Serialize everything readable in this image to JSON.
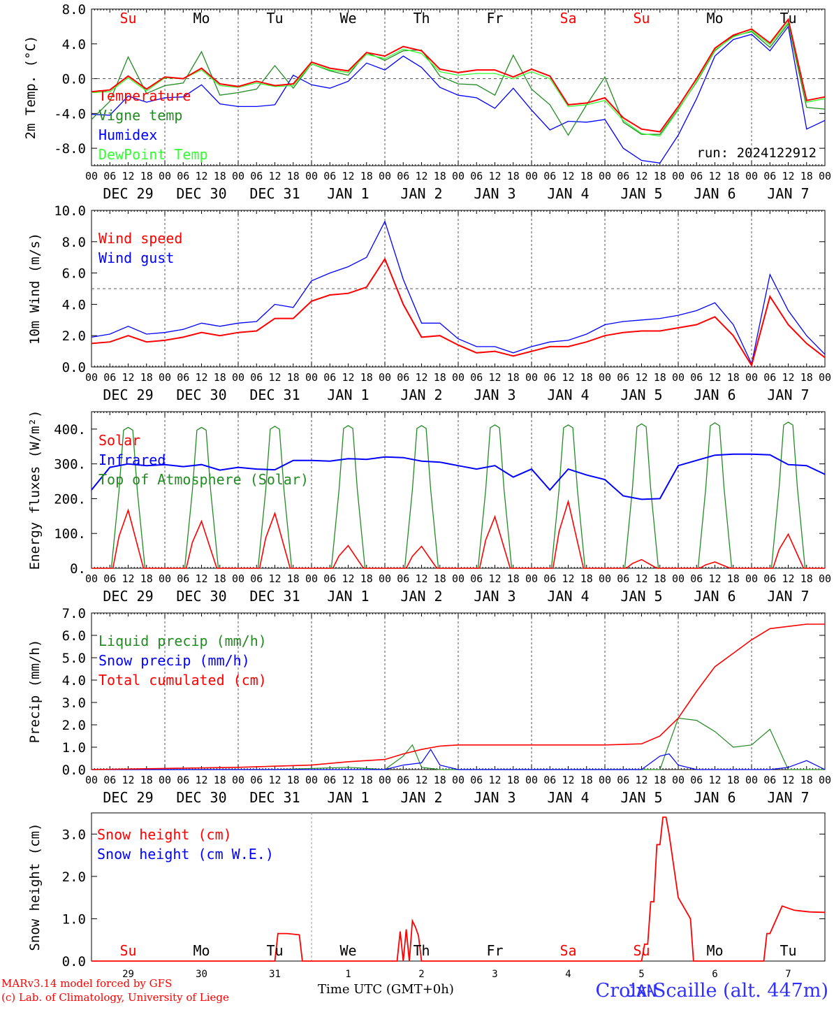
{
  "footer": {
    "model_line": "MARv3.14 model forced by GFS",
    "lab_line": "(c) Lab. of Climatology, University of Liege",
    "time_label": "Time UTC (GMT+0h)",
    "station": "Croix-Scaille (alt. 447m)"
  },
  "colors": {
    "red": "#ff0000",
    "green": "#228b22",
    "blue": "#0000ff",
    "light_green": "#33ff33",
    "dashed": "#555555"
  },
  "chart_data": [
    {
      "id": "temp",
      "type": "line",
      "ylabel": "2m Temp. (°C)",
      "ylim": [
        -10,
        8
      ],
      "yticks": [
        "8.0",
        "4.0",
        "0.0",
        "-4.0",
        "-8.0"
      ],
      "ytick_values": [
        8,
        4,
        0,
        -4,
        -8
      ],
      "ref_line": 0,
      "day_names": [
        {
          "text": "Su",
          "color": "#ff0000"
        },
        {
          "text": "Mo",
          "color": "#000000"
        },
        {
          "text": "Tu",
          "color": "#000000"
        },
        {
          "text": "We",
          "color": "#000000"
        },
        {
          "text": "Th",
          "color": "#000000"
        },
        {
          "text": "Fr",
          "color": "#000000"
        },
        {
          "text": "Sa",
          "color": "#ff0000"
        },
        {
          "text": "Su",
          "color": "#ff0000"
        },
        {
          "text": "Mo",
          "color": "#000000"
        },
        {
          "text": "Tu",
          "color": "#000000"
        }
      ],
      "run_label": "run: 2024122912",
      "series": [
        {
          "name": "Temperature",
          "color": "#ff0000",
          "x": [
            0,
            6,
            12,
            18,
            24,
            30,
            36,
            42,
            48,
            54,
            60,
            66,
            72,
            78,
            84,
            90,
            96,
            102,
            108,
            114,
            120,
            126,
            132,
            138,
            144,
            150,
            156,
            162,
            168,
            174,
            180,
            186,
            192,
            198,
            204,
            210,
            216,
            222,
            228,
            234,
            240
          ],
          "y": [
            -1.5,
            -1.3,
            0.3,
            -1.2,
            0.2,
            0.0,
            1.2,
            -0.6,
            -0.9,
            -0.3,
            -0.8,
            -0.6,
            1.9,
            1.2,
            0.9,
            3.0,
            2.6,
            3.7,
            3.2,
            1.1,
            0.7,
            1.0,
            1.0,
            0.2,
            1.1,
            0.3,
            -3.0,
            -2.8,
            -2.2,
            -4.5,
            -5.8,
            -6.1,
            -3.2,
            0.0,
            3.5,
            5.0,
            5.7,
            4.1,
            6.8,
            -2.5,
            -2.1
          ]
        },
        {
          "name": "Vigne temp",
          "color": "#228b22",
          "x": [
            0,
            6,
            12,
            18,
            24,
            30,
            36,
            42,
            48,
            54,
            60,
            66,
            72,
            78,
            84,
            90,
            96,
            102,
            108,
            114,
            120,
            126,
            132,
            138,
            144,
            150,
            156,
            162,
            168,
            174,
            180,
            186,
            192,
            198,
            204,
            210,
            216,
            222,
            228,
            234,
            240
          ],
          "y": [
            -4.7,
            -2.6,
            2.5,
            -1.7,
            -0.8,
            -0.5,
            3.1,
            -1.9,
            -1.6,
            -1.2,
            1.5,
            -1.1,
            1.7,
            0.9,
            0.4,
            3.0,
            2.1,
            3.2,
            3.3,
            0.3,
            -0.6,
            -0.7,
            -1.9,
            2.7,
            -1.2,
            -3.0,
            -6.5,
            -3.0,
            0.2,
            -5.0,
            -6.4,
            -6.4,
            -3.5,
            -0.4,
            3.2,
            4.9,
            5.4,
            3.6,
            6.3,
            -3.3,
            -3.5
          ]
        },
        {
          "name": "Humidex",
          "color": "#0000ff",
          "x": [
            0,
            6,
            12,
            18,
            24,
            30,
            36,
            42,
            48,
            54,
            60,
            66,
            72,
            78,
            84,
            90,
            96,
            102,
            108,
            114,
            120,
            126,
            132,
            138,
            144,
            150,
            156,
            162,
            168,
            174,
            180,
            186,
            192,
            198,
            204,
            210,
            216,
            222,
            228,
            234,
            240
          ],
          "y": [
            -4.1,
            -4.2,
            -2.0,
            -2.7,
            -2.2,
            -2.1,
            -0.7,
            -2.9,
            -3.2,
            -3.2,
            -3.0,
            0.4,
            -0.7,
            -1.1,
            -0.3,
            1.8,
            1.0,
            2.6,
            1.3,
            -1.0,
            -1.9,
            -2.2,
            -3.4,
            -1.1,
            -3.6,
            -5.9,
            -4.9,
            -5.0,
            -4.7,
            -8.0,
            -9.4,
            -9.7,
            -6.5,
            -2.3,
            2.6,
            4.5,
            5.1,
            3.2,
            6.0,
            -5.8,
            -4.8
          ]
        },
        {
          "name": "DewPoint Temp",
          "color": "#33ff33",
          "x": [
            0,
            6,
            12,
            18,
            24,
            30,
            36,
            42,
            48,
            54,
            60,
            66,
            72,
            78,
            84,
            90,
            96,
            102,
            108,
            114,
            120,
            126,
            132,
            138,
            144,
            150,
            156,
            162,
            168,
            174,
            180,
            186,
            192,
            198,
            204,
            210,
            216,
            222,
            228,
            234,
            240
          ],
          "y": [
            -1.6,
            -1.5,
            0.1,
            -1.4,
            0.1,
            0.0,
            1.0,
            -0.8,
            -1.0,
            -0.5,
            -0.9,
            -0.8,
            1.7,
            1.0,
            0.7,
            2.8,
            2.3,
            3.4,
            2.9,
            0.8,
            0.4,
            0.6,
            0.6,
            0.0,
            0.8,
            0.0,
            -3.2,
            -3.0,
            -2.5,
            -4.8,
            -6.3,
            -6.6,
            -3.6,
            -0.3,
            3.3,
            4.8,
            5.5,
            3.9,
            6.5,
            -2.7,
            -2.3
          ]
        }
      ]
    },
    {
      "id": "wind",
      "type": "line",
      "ylabel": "10m Wind (m/s)",
      "ylim": [
        0,
        10
      ],
      "yticks": [
        "10.0",
        "8.0",
        "6.0",
        "4.0",
        "2.0",
        "0.0"
      ],
      "ytick_values": [
        10,
        8,
        6,
        4,
        2,
        0
      ],
      "ref_line": 5,
      "series": [
        {
          "name": "Wind speed",
          "color": "#ff0000",
          "x": [
            0,
            6,
            12,
            18,
            24,
            30,
            36,
            42,
            48,
            54,
            60,
            66,
            72,
            78,
            84,
            90,
            96,
            102,
            108,
            114,
            120,
            126,
            132,
            138,
            144,
            150,
            156,
            162,
            168,
            174,
            180,
            186,
            192,
            198,
            204,
            210,
            216,
            222,
            228,
            234,
            240
          ],
          "y": [
            1.5,
            1.6,
            2.0,
            1.6,
            1.7,
            1.9,
            2.2,
            2.0,
            2.2,
            2.3,
            3.1,
            3.1,
            4.2,
            4.6,
            4.7,
            5.1,
            6.9,
            4.0,
            1.9,
            2.0,
            1.4,
            0.9,
            1.0,
            0.7,
            1.0,
            1.3,
            1.3,
            1.6,
            2.0,
            2.2,
            2.3,
            2.3,
            2.5,
            2.7,
            3.2,
            2.0,
            0.1,
            4.5,
            2.7,
            1.5,
            0.6
          ]
        },
        {
          "name": "Wind gust",
          "color": "#0000ff",
          "x": [
            0,
            6,
            12,
            18,
            24,
            30,
            36,
            42,
            48,
            54,
            60,
            66,
            72,
            78,
            84,
            90,
            96,
            102,
            108,
            114,
            120,
            126,
            132,
            138,
            144,
            150,
            156,
            162,
            168,
            174,
            180,
            186,
            192,
            198,
            204,
            210,
            216,
            222,
            228,
            234,
            240
          ],
          "y": [
            1.9,
            2.1,
            2.6,
            2.1,
            2.2,
            2.4,
            2.8,
            2.6,
            2.8,
            2.9,
            4.0,
            3.8,
            5.5,
            6.0,
            6.4,
            7.0,
            9.3,
            5.6,
            2.8,
            2.8,
            1.8,
            1.3,
            1.3,
            0.9,
            1.3,
            1.6,
            1.7,
            2.1,
            2.7,
            2.9,
            3.0,
            3.1,
            3.3,
            3.6,
            4.1,
            2.7,
            0.2,
            5.9,
            3.6,
            2.0,
            0.8
          ]
        }
      ]
    },
    {
      "id": "energy",
      "type": "line",
      "ylabel": "Energy fluxes (W/m²)",
      "ylim": [
        0,
        450
      ],
      "yticks": [
        "400.",
        "300.",
        "200.",
        "100.",
        "0."
      ],
      "ytick_values": [
        400,
        300,
        200,
        100,
        0
      ],
      "series": [
        {
          "name": "Solar",
          "color": "#ff0000",
          "daily_peaks": [
            167,
            135,
            158,
            65,
            63,
            148,
            192,
            25,
            18,
            98
          ]
        },
        {
          "name": "Infrared",
          "color": "#0000ff",
          "x": [
            0,
            6,
            12,
            18,
            24,
            30,
            36,
            42,
            48,
            54,
            60,
            66,
            72,
            78,
            84,
            90,
            96,
            102,
            108,
            114,
            120,
            126,
            132,
            138,
            144,
            150,
            156,
            162,
            168,
            174,
            180,
            186,
            192,
            198,
            204,
            210,
            216,
            222,
            228,
            234,
            240
          ],
          "y": [
            225,
            290,
            300,
            295,
            298,
            292,
            298,
            282,
            290,
            285,
            283,
            310,
            310,
            308,
            315,
            313,
            320,
            318,
            308,
            305,
            295,
            285,
            295,
            262,
            285,
            225,
            285,
            268,
            255,
            208,
            198,
            200,
            295,
            310,
            325,
            328,
            328,
            326,
            298,
            295,
            270
          ]
        },
        {
          "name": "Top of Atmosphere (Solar)",
          "color": "#228b22",
          "daily_peaks": [
            405,
            405,
            408,
            410,
            410,
            412,
            412,
            415,
            418,
            420
          ]
        }
      ]
    },
    {
      "id": "precip",
      "type": "line",
      "ylabel": "Precip (mm/h)",
      "ylim": [
        0,
        7
      ],
      "yticks": [
        "7.0",
        "6.0",
        "5.0",
        "4.0",
        "3.0",
        "2.0",
        "1.0",
        "0.0"
      ],
      "ytick_values": [
        7,
        6,
        5,
        4,
        3,
        2,
        1,
        0
      ],
      "series": [
        {
          "name": "Liquid precip (mm/h)",
          "color": "#228b22",
          "x": [
            0,
            60,
            84,
            96,
            102,
            105,
            108,
            114,
            120,
            150,
            180,
            186,
            192,
            198,
            204,
            210,
            216,
            222,
            228,
            234,
            240
          ],
          "y": [
            0.0,
            0.0,
            0.1,
            0.0,
            0.6,
            1.1,
            0.1,
            0.0,
            0.0,
            0.0,
            0.0,
            0.0,
            2.3,
            2.2,
            1.7,
            1.0,
            1.1,
            1.8,
            0.0,
            0.0,
            0.0
          ]
        },
        {
          "name": "Snow precip (mm/h)",
          "color": "#0000ff",
          "x": [
            0,
            96,
            102,
            108,
            111,
            114,
            120,
            180,
            186,
            189,
            192,
            198,
            210,
            222,
            228,
            234,
            240
          ],
          "y": [
            0.0,
            0.0,
            0.2,
            0.3,
            0.9,
            0.2,
            0.0,
            0.0,
            0.6,
            0.7,
            0.2,
            0.0,
            0.0,
            0.0,
            0.1,
            0.4,
            0.0
          ]
        },
        {
          "name": "Total cumulated (cm)",
          "color": "#ff0000",
          "x": [
            0,
            24,
            48,
            72,
            84,
            96,
            102,
            108,
            114,
            120,
            144,
            168,
            180,
            186,
            192,
            198,
            204,
            210,
            216,
            222,
            228,
            234,
            240
          ],
          "y": [
            0.0,
            0.05,
            0.1,
            0.2,
            0.35,
            0.45,
            0.7,
            0.9,
            1.05,
            1.1,
            1.1,
            1.1,
            1.15,
            1.5,
            2.3,
            3.5,
            4.6,
            5.2,
            5.8,
            6.3,
            6.4,
            6.5,
            6.5
          ]
        }
      ]
    },
    {
      "id": "snow",
      "type": "line",
      "ylabel": "Snow height (cm)",
      "ylim": [
        0,
        3.5
      ],
      "yticks": [
        "3.0",
        "2.0",
        "1.0",
        "0.0"
      ],
      "ytick_values": [
        3,
        2,
        1,
        0
      ],
      "day_numbers": [
        "29",
        "30",
        "31",
        "1",
        "2",
        "3",
        "4",
        "5",
        "6",
        "7"
      ],
      "month_label": "JAN",
      "series": [
        {
          "name": "Snow height (cm)",
          "color": "#ff0000",
          "x": [
            0,
            60,
            61,
            64,
            68,
            69,
            70,
            100,
            101,
            102,
            103,
            104,
            105,
            106,
            107,
            108,
            109,
            110,
            180,
            181,
            182,
            183,
            184,
            185,
            186,
            187,
            188,
            189,
            190,
            192,
            196,
            197,
            198,
            220,
            221,
            222,
            226,
            228,
            230,
            235,
            240
          ],
          "y": [
            0,
            0,
            0.65,
            0.65,
            0.62,
            0,
            0,
            0,
            0.7,
            0,
            0.75,
            0,
            0.95,
            0.8,
            0.6,
            0,
            0,
            0,
            0,
            0.4,
            0.4,
            1.4,
            1.4,
            2.75,
            2.75,
            3.4,
            3.4,
            3.0,
            2.5,
            1.5,
            1.0,
            0,
            0,
            0,
            0.65,
            0.65,
            1.3,
            1.25,
            1.2,
            1.16,
            1.15
          ]
        },
        {
          "name": "Snow height (cm W.E.)",
          "color": "#0000ff",
          "x": [
            0,
            240
          ],
          "y": [
            0,
            0
          ]
        }
      ]
    }
  ],
  "time_axis": {
    "hour_ticks": [
      "00",
      "06",
      "12",
      "18"
    ],
    "date_labels": [
      "DEC 29",
      "DEC 30",
      "DEC 31",
      "JAN  1",
      "JAN  2",
      "JAN  3",
      "JAN  4",
      "JAN  5",
      "JAN  6",
      "JAN  7"
    ]
  }
}
